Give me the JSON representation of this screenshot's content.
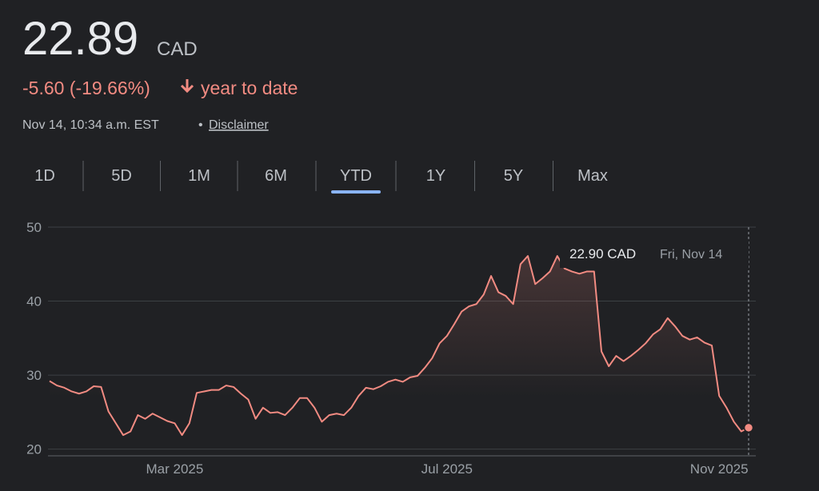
{
  "header": {
    "price": "22.89",
    "currency": "CAD",
    "change": "-5.60 (-19.66%)",
    "period": "year to date",
    "timestamp": "Nov 14, 10:34 a.m. EST",
    "separator": "•",
    "disclaimer": "Disclaimer"
  },
  "tabs": [
    "1D",
    "5D",
    "1M",
    "6M",
    "YTD",
    "1Y",
    "5Y",
    "Max"
  ],
  "selected_tab": "YTD",
  "tooltip": {
    "price": "22.90 CAD",
    "date": "Fri, Nov 14"
  },
  "chart_data": {
    "type": "line",
    "color": "#f28b82",
    "grid": true,
    "ylim": [
      19.1,
      50
    ],
    "yticks": [
      20,
      30,
      40,
      50
    ],
    "categories": [
      null,
      null,
      null,
      null,
      null,
      null,
      null,
      null,
      null,
      null,
      null,
      null,
      null,
      null,
      null,
      null,
      null,
      "Mar 2025",
      null,
      null,
      null,
      null,
      null,
      null,
      null,
      null,
      null,
      null,
      null,
      null,
      null,
      null,
      null,
      null,
      null,
      null,
      null,
      null,
      null,
      null,
      null,
      null,
      null,
      null,
      null,
      null,
      null,
      null,
      null,
      null,
      null,
      null,
      null,
      null,
      "Jul 2025",
      null,
      null,
      null,
      null,
      null,
      null,
      null,
      null,
      null,
      null,
      null,
      null,
      null,
      null,
      null,
      null,
      null,
      null,
      null,
      null,
      null,
      null,
      null,
      null,
      null,
      null,
      null,
      null,
      null,
      null,
      null,
      null,
      null,
      null,
      null,
      null,
      "Nov 2025",
      null,
      null,
      null,
      null
    ],
    "values": [
      29.2,
      28.6,
      28.3,
      27.8,
      27.5,
      27.8,
      28.5,
      28.4,
      25.1,
      23.5,
      21.9,
      22.4,
      24.6,
      24.1,
      24.8,
      24.3,
      23.8,
      23.5,
      21.9,
      23.5,
      27.6,
      27.8,
      28.0,
      28.0,
      28.6,
      28.4,
      27.5,
      26.7,
      24.1,
      25.6,
      24.9,
      25.0,
      24.6,
      25.6,
      26.9,
      26.9,
      25.6,
      23.7,
      24.6,
      24.8,
      24.6,
      25.6,
      27.2,
      28.3,
      28.1,
      28.5,
      29.1,
      29.4,
      29.1,
      29.7,
      29.9,
      31.0,
      32.3,
      34.3,
      35.3,
      36.9,
      38.6,
      39.3,
      39.6,
      40.9,
      43.4,
      41.2,
      40.7,
      39.6,
      45.0,
      46.1,
      42.3,
      43.1,
      44.0,
      46.1,
      44.4,
      44.0,
      43.7,
      44.0,
      44.0,
      33.2,
      31.2,
      32.6,
      31.9,
      32.6,
      33.4,
      34.3,
      35.5,
      36.2,
      37.7,
      36.6,
      35.3,
      34.8,
      35.1,
      34.4,
      34.0,
      27.2,
      25.6,
      23.7,
      22.4,
      22.9
    ]
  }
}
